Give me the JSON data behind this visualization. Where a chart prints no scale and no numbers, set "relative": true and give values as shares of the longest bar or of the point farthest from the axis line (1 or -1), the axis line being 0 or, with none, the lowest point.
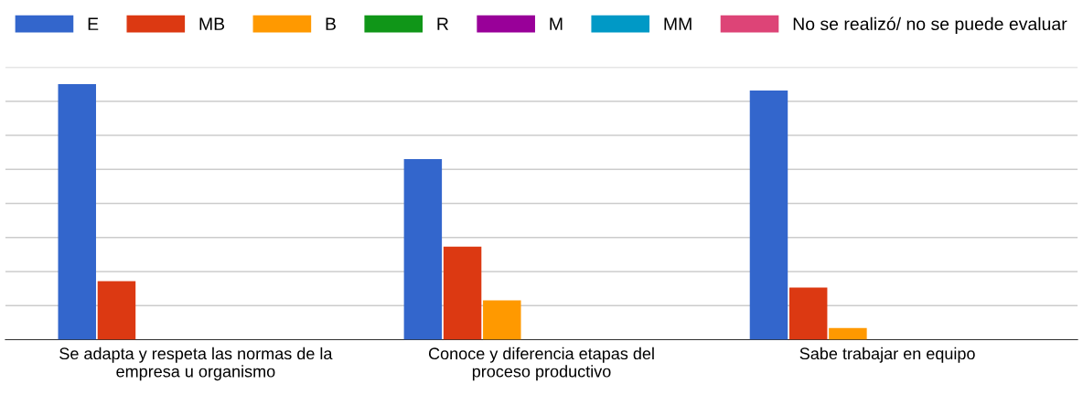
{
  "chart_data": {
    "type": "bar",
    "relative": true,
    "grid": "y",
    "legend": "top",
    "categories": [
      "Se adapta y respeta las normas de la empresa u organismo",
      "Conoce y diferencia etapas del proceso productivo",
      "Sabe trabajar en equipo"
    ],
    "series": [
      {
        "name": "E",
        "color": "#3366cc",
        "values": [
          1,
          0.707,
          0.975
        ]
      },
      {
        "name": "MB",
        "color": "#dc3912",
        "values": [
          0.229,
          0.364,
          0.204
        ]
      },
      {
        "name": "B",
        "color": "#ff9900",
        "values": [
          0,
          0.154,
          0.046
        ]
      },
      {
        "name": "R",
        "color": "#109618",
        "values": [
          0,
          0,
          0
        ]
      },
      {
        "name": "M",
        "color": "#990099",
        "values": [
          0,
          0,
          0
        ]
      },
      {
        "name": "MM",
        "color": "#0099c6",
        "values": [
          0,
          0,
          0
        ]
      },
      {
        "name": "No se realizó/ no se puede evaluar",
        "color": "#dd4477",
        "values": [
          0,
          0,
          0
        ]
      }
    ]
  }
}
